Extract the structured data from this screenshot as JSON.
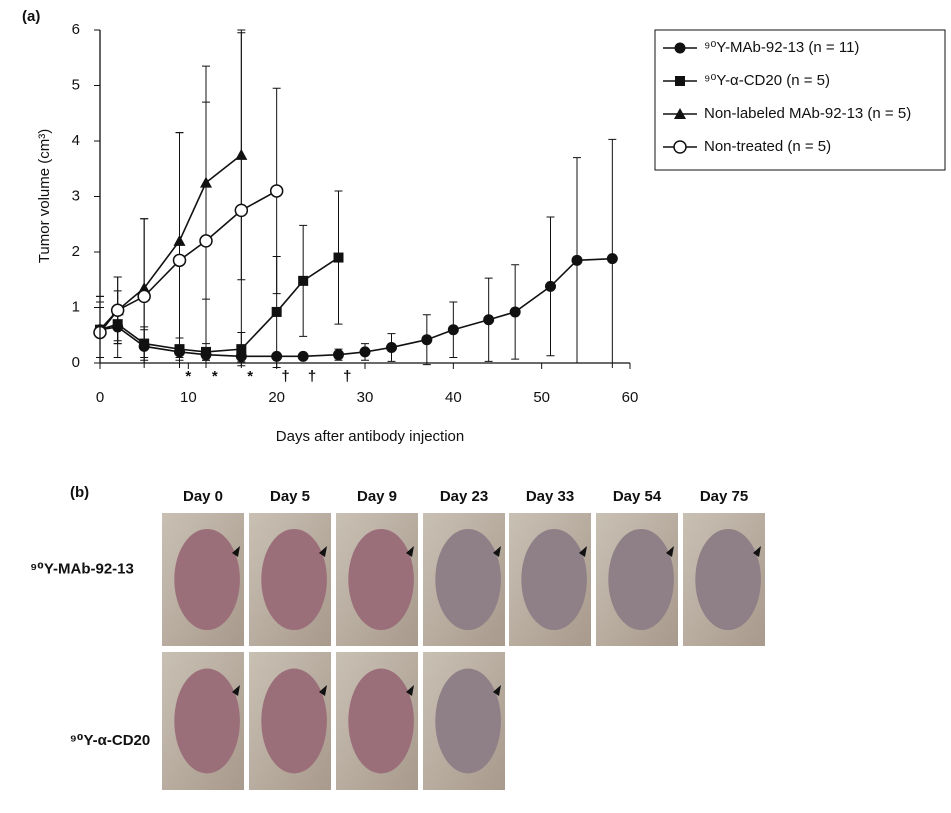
{
  "chart_data": {
    "type": "line",
    "panel_label": "(a)",
    "xlabel": "Days after antibody injection",
    "ylabel": "Tumor volume (cm³)",
    "xlim": [
      0,
      60
    ],
    "xticks": [
      0,
      10,
      20,
      30,
      40,
      50,
      60
    ],
    "ylim": [
      0,
      6
    ],
    "yticks": [
      0,
      1,
      2,
      3,
      4,
      5,
      6
    ],
    "legend": "outside-right",
    "series": [
      {
        "name": "⁹⁰Y-MAb-92-13 (n = 11)",
        "color": "#111111",
        "marker": "circle-filled",
        "x": [
          0,
          2,
          5,
          9,
          12,
          16,
          20,
          23,
          27,
          30,
          33,
          37,
          40,
          44,
          47,
          51,
          54,
          58
        ],
        "values": [
          0.6,
          0.65,
          0.3,
          0.2,
          0.15,
          0.12,
          0.12,
          0.12,
          0.15,
          0.2,
          0.28,
          0.42,
          0.6,
          0.78,
          0.92,
          1.38,
          1.85,
          1.88
        ],
        "errors": [
          0.6,
          0.25,
          0.3,
          0.1,
          0.1,
          0.1,
          0.05,
          0.05,
          0.1,
          0.15,
          0.25,
          0.45,
          0.5,
          0.75,
          0.85,
          1.25,
          1.85,
          2.15
        ]
      },
      {
        "name": "⁹⁰Y-α-CD20 (n = 5)",
        "color": "#111111",
        "marker": "square",
        "x": [
          0,
          2,
          5,
          9,
          12,
          16,
          20,
          23,
          27
        ],
        "values": [
          0.6,
          0.7,
          0.35,
          0.25,
          0.2,
          0.25,
          0.92,
          1.48,
          1.9
        ],
        "errors": [
          0.5,
          0.6,
          0.3,
          0.2,
          0.15,
          0.3,
          1.0,
          1.0,
          1.2
        ]
      },
      {
        "name": "Non-labeled MAb-92-13 (n = 5)",
        "color": "#111111",
        "marker": "triangle",
        "x": [
          0,
          2,
          5,
          9,
          12,
          16
        ],
        "values": [
          0.6,
          0.95,
          1.35,
          2.2,
          3.25,
          3.75
        ],
        "errors": [
          0.6,
          0.6,
          1.25,
          1.95,
          2.1,
          2.25
        ]
      },
      {
        "name": "Non-treated (n = 5)",
        "color": "#111111",
        "marker": "circle-open",
        "x": [
          0,
          2,
          5,
          9,
          12,
          16,
          20
        ],
        "values": [
          0.55,
          0.95,
          1.2,
          1.85,
          2.2,
          2.75,
          3.1
        ],
        "errors": [
          0.45,
          0.6,
          1.4,
          2.3,
          2.5,
          3.2,
          1.85
        ]
      }
    ],
    "annotations": [
      {
        "text": "*",
        "x": 10
      },
      {
        "text": "*",
        "x": 13
      },
      {
        "text": "*",
        "x": 17
      },
      {
        "text": "†",
        "x": 21
      },
      {
        "text": "†",
        "x": 24
      },
      {
        "text": "†",
        "x": 28
      }
    ]
  },
  "panel_b": {
    "panel_label": "(b)",
    "columns": [
      "Day 0",
      "Day 5",
      "Day 9",
      "Day 23",
      "Day 33",
      "Day 54",
      "Day 75"
    ],
    "rows": [
      {
        "label": "⁹⁰Y-MAb-92-13"
      },
      {
        "label": "⁹⁰Y-α-CD20"
      }
    ]
  }
}
